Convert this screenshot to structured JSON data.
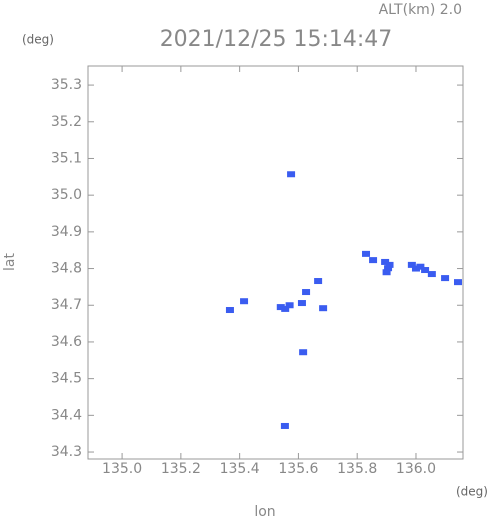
{
  "chart_data": {
    "type": "scatter",
    "title": "2021/12/25 15:14:47",
    "subtitle": "ALT(km) 2.0",
    "y_unit": "(deg)",
    "x_unit": "(deg)",
    "x_label": "lon",
    "y_label": "lat",
    "color": "#3a5cf0",
    "xlim": [
      134.884,
      136.16
    ],
    "ylim": [
      34.281,
      35.352
    ],
    "xticks": [
      {
        "value": 135.0,
        "label": "135.0"
      },
      {
        "value": 135.2,
        "label": "135.2"
      },
      {
        "value": 135.4,
        "label": "135.4"
      },
      {
        "value": 135.6,
        "label": "135.6"
      },
      {
        "value": 135.8,
        "label": "135.8"
      },
      {
        "value": 136.0,
        "label": "136.0"
      }
    ],
    "yticks": [
      34.3,
      34.4,
      34.5,
      34.6,
      34.7,
      34.8,
      34.9,
      {
        "value": 35.0,
        "label": "35.0"
      },
      35.1,
      35.2,
      35.3
    ],
    "x": [
      135.575,
      135.667,
      135.367,
      135.415,
      135.54,
      135.555,
      135.57,
      135.612,
      135.626,
      135.684,
      135.616,
      135.554,
      135.83,
      135.854,
      135.895,
      135.905,
      135.9,
      135.91,
      135.986,
      136.0,
      136.015,
      136.031,
      136.054,
      136.099,
      136.143
    ],
    "y": [
      35.057,
      34.766,
      34.687,
      34.711,
      34.695,
      34.69,
      34.7,
      34.706,
      34.736,
      34.692,
      34.572,
      34.371,
      34.84,
      34.823,
      34.818,
      34.801,
      34.79,
      34.81,
      34.81,
      34.8,
      34.805,
      34.796,
      34.785,
      34.774,
      34.763
    ]
  }
}
